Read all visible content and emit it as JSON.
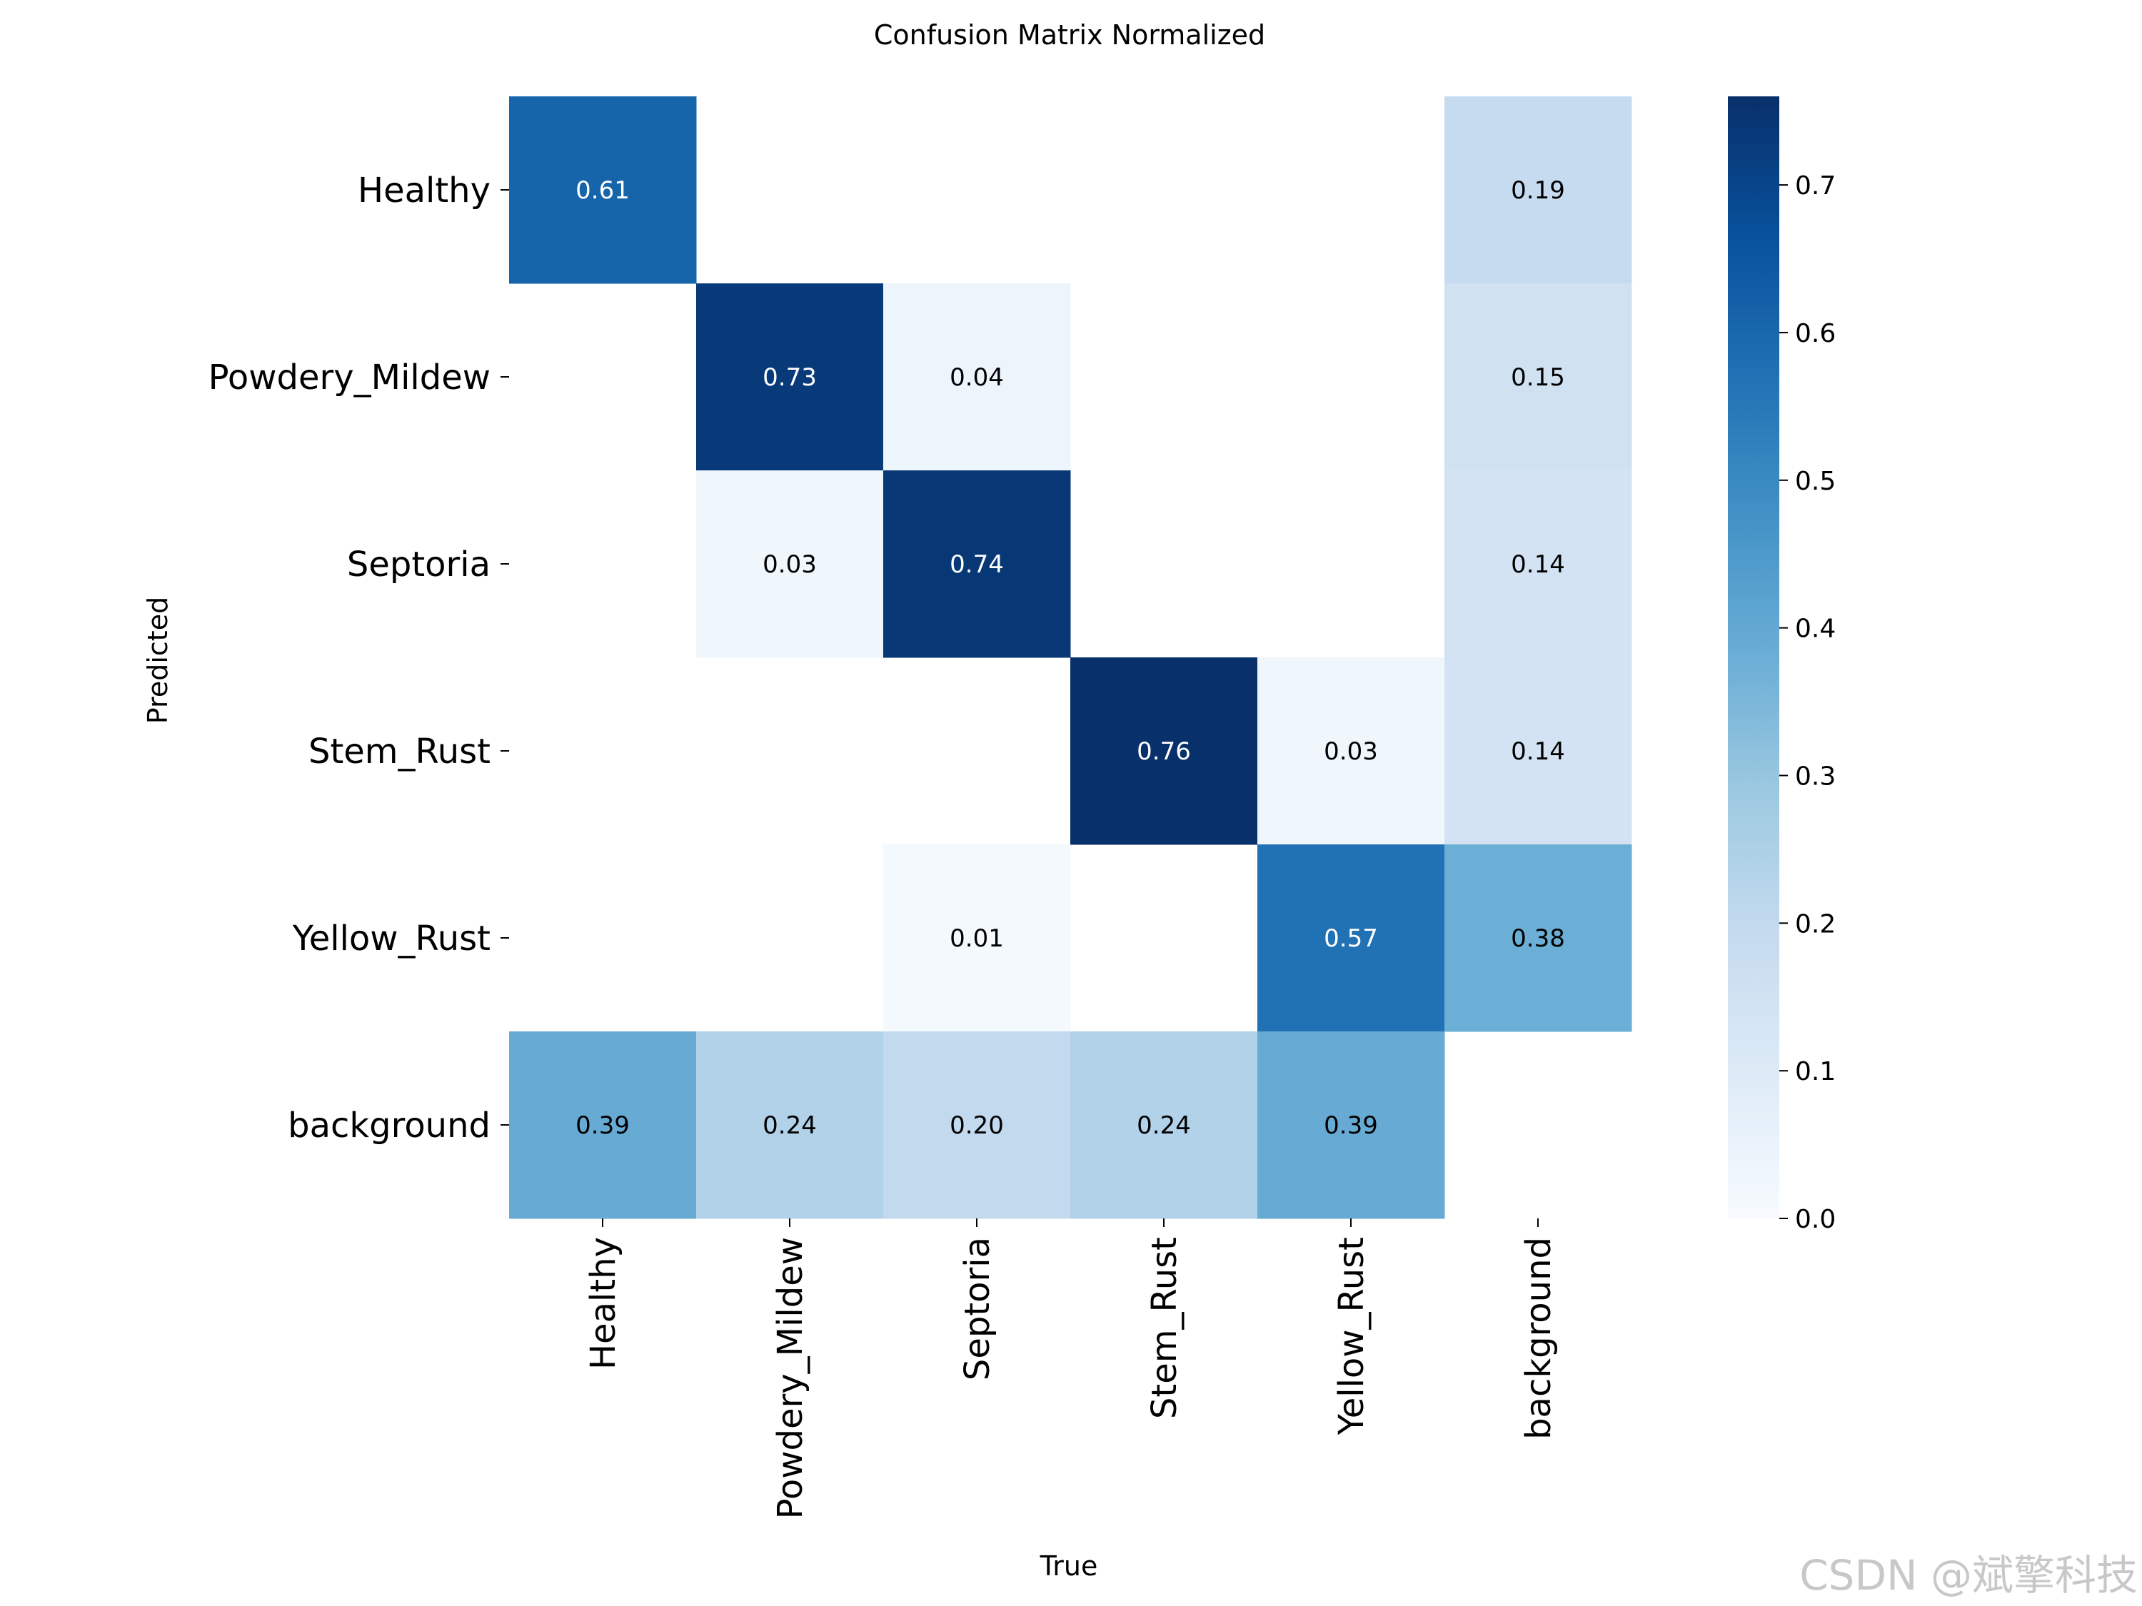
{
  "chart_data": {
    "type": "heatmap",
    "title": "Confusion Matrix Normalized",
    "xlabel": "True",
    "ylabel": "Predicted",
    "x_categories": [
      "Healthy",
      "Powdery_Mildew",
      "Septoria",
      "Stem_Rust",
      "Yellow_Rust",
      "background"
    ],
    "y_categories": [
      "Healthy",
      "Powdery_Mildew",
      "Septoria",
      "Stem_Rust",
      "Yellow_Rust",
      "background"
    ],
    "values": [
      [
        0.61,
        null,
        null,
        null,
        null,
        0.19
      ],
      [
        null,
        0.73,
        0.04,
        null,
        null,
        0.15
      ],
      [
        null,
        0.03,
        0.74,
        null,
        null,
        0.14
      ],
      [
        null,
        null,
        null,
        0.76,
        0.03,
        0.14
      ],
      [
        null,
        null,
        0.01,
        null,
        0.57,
        0.38
      ],
      [
        0.39,
        0.24,
        0.2,
        0.24,
        0.39,
        null
      ]
    ],
    "value_labels": [
      [
        "0.61",
        "",
        "",
        "",
        "",
        "0.19"
      ],
      [
        "",
        "0.73",
        "0.04",
        "",
        "",
        "0.15"
      ],
      [
        "",
        "0.03",
        "0.74",
        "",
        "",
        "0.14"
      ],
      [
        "",
        "",
        "",
        "0.76",
        "0.03",
        "0.14"
      ],
      [
        "",
        "",
        "0.01",
        "",
        "0.57",
        "0.38"
      ],
      [
        "0.39",
        "0.24",
        "0.20",
        "0.24",
        "0.39",
        ""
      ]
    ],
    "colorbar": {
      "range": [
        0.0,
        0.76
      ],
      "ticks": [
        0.0,
        0.1,
        0.2,
        0.3,
        0.4,
        0.5,
        0.6,
        0.7
      ],
      "tick_labels": [
        "0.0",
        "0.1",
        "0.2",
        "0.3",
        "0.4",
        "0.5",
        "0.6",
        "0.7"
      ],
      "colormap": "Blues",
      "colors": [
        "#f7fbff",
        "#deebf7",
        "#c6dbef",
        "#9ecae1",
        "#6baed6",
        "#4292c6",
        "#2171b5",
        "#08519c",
        "#08306b"
      ]
    }
  },
  "watermark": "CSDN @斌擎科技"
}
